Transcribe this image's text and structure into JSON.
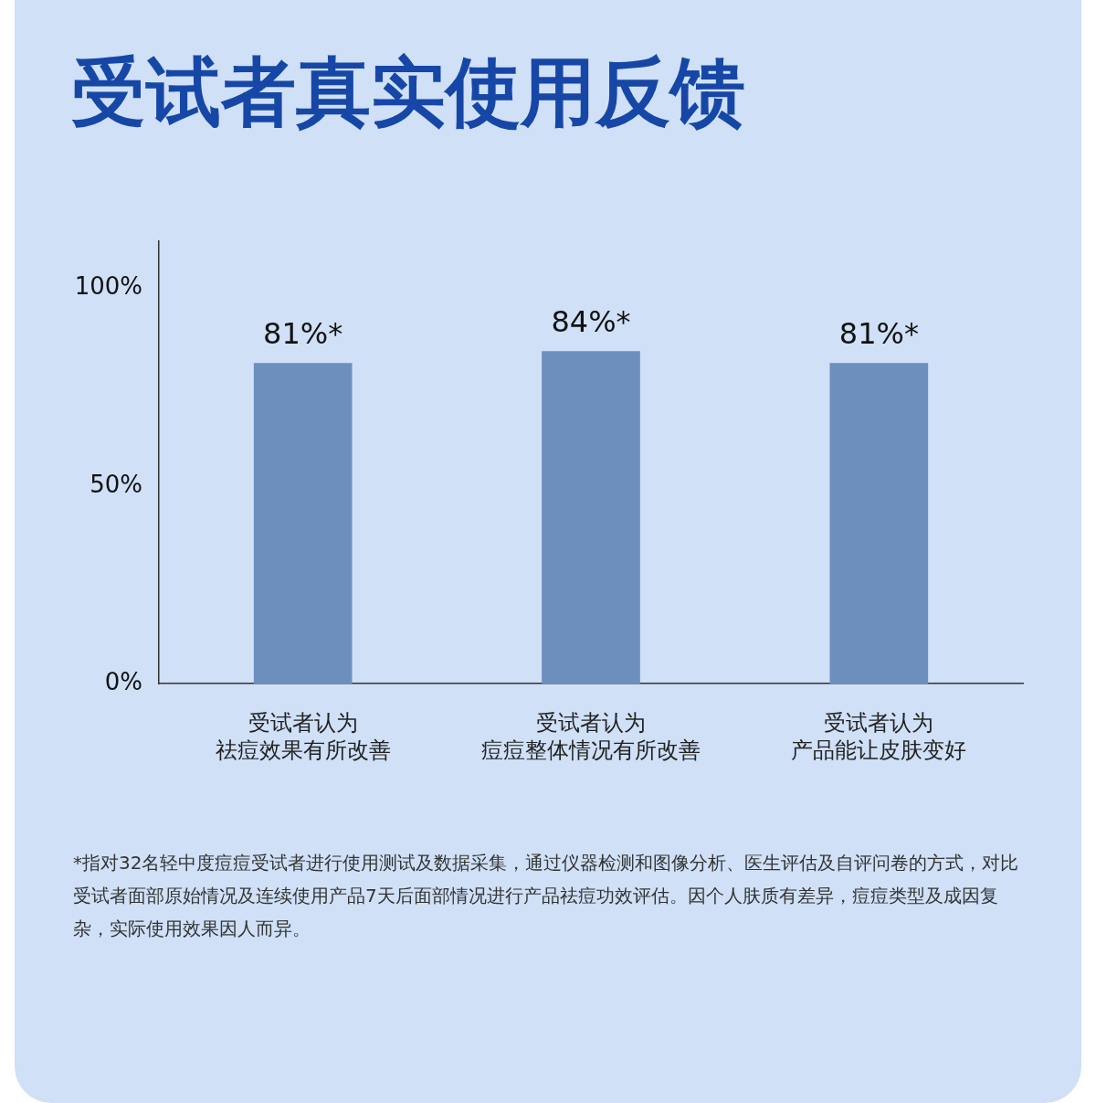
{
  "chart_data": {
    "type": "bar",
    "title": "受试者真实使用反馈",
    "categories": [
      "受试者认为祛痘效果有所改善",
      "受试者认为痘痘整体情况有所改善",
      "受试者认为产品能让皮肤变好"
    ],
    "values": [
      81,
      84,
      81
    ],
    "color": "#6d8fbd",
    "value_labels": [
      "81%*",
      "84%*",
      "81%*"
    ],
    "ylim": [
      0,
      112
    ],
    "yticks": [
      {
        "value": 0,
        "label": "0%"
      },
      {
        "value": 50,
        "label": "50%"
      },
      {
        "value": 100,
        "label": "100%"
      }
    ],
    "annotations": [
      "*指对32名轻中度痘痘受试者进行使用测试及数据采集，通过仪器检测和图像分析、医生评估及自评问卷的方式，对比受试者面部原始情况及连续使用产品7天后面部情况进行产品祛痘功效评估。因个人肤质有差异，痘痘类型及成因复杂，实际使用效果因人而异。"
    ]
  }
}
